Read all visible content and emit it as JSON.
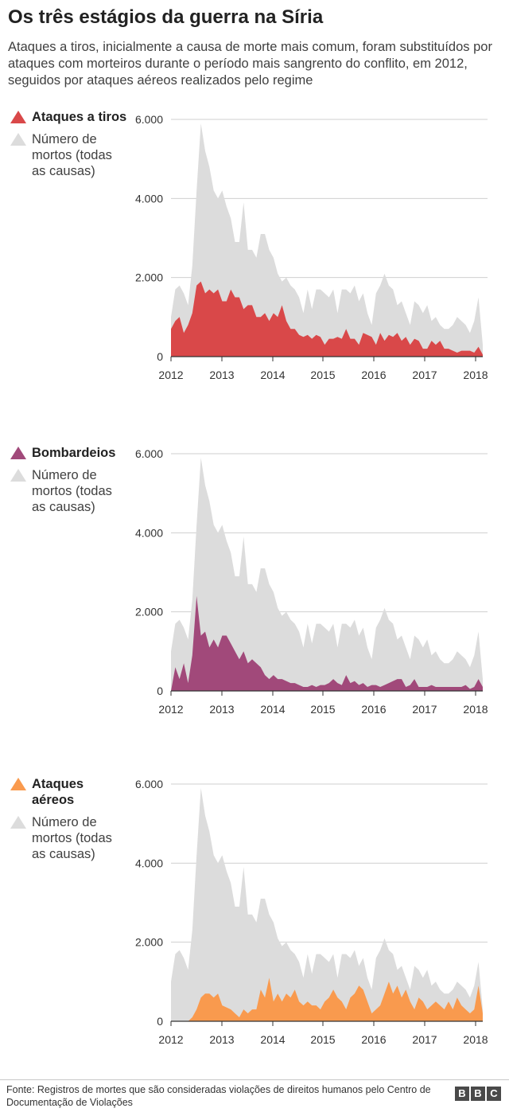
{
  "title": "Os três estágios da guerra na Síria",
  "subtitle": "Ataques a tiros, inicialmente a causa de morte mais comum, foram substituídos por ataques com morteiros durante o período mais sangrento do conflito, em 2012, seguidos por ataques aéreos realizados pelo regime",
  "source": "Fonte: Registros de mortes que são consideradas violações de direitos humanos pelo Centro de Documentação de Violações",
  "logo": [
    "B",
    "B",
    "C"
  ],
  "colors": {
    "total": "#dcdcdc",
    "shootings": "#d94849",
    "shelling": "#a1497a",
    "airstrikes": "#f99a4e"
  },
  "chart_data": [
    {
      "type": "area",
      "legend": [
        "Ataques a tiros",
        "Número de mortos (todas as causas)"
      ],
      "x_ticks": [
        "2012",
        "2013",
        "2014",
        "2015",
        "2016",
        "2017",
        "2018"
      ],
      "y_ticks": [
        "6.000",
        "4.000",
        "2.000",
        "0"
      ],
      "ylim": [
        0,
        6000
      ],
      "xlim": [
        "2012-01",
        "2018-03"
      ],
      "series": [
        {
          "name": "Número de mortos (todas as causas)",
          "color": "#dcdcdc",
          "values": [
            1000,
            1700,
            1800,
            1600,
            1300,
            2300,
            4200,
            5900,
            5200,
            4800,
            4200,
            4000,
            4200,
            3800,
            3500,
            2900,
            2900,
            3900,
            2700,
            2700,
            2500,
            3100,
            3100,
            2700,
            2500,
            2100,
            1900,
            2000,
            1800,
            1700,
            1500,
            1100,
            1700,
            1200,
            1700,
            1700,
            1600,
            1500,
            1700,
            1100,
            1700,
            1700,
            1600,
            1800,
            1400,
            1600,
            1100,
            800,
            1600,
            1800,
            2100,
            1800,
            1700,
            1300,
            1400,
            1100,
            800,
            1400,
            1300,
            1100,
            1300,
            900,
            1000,
            800,
            700,
            700,
            800,
            1000,
            900,
            800,
            600,
            900,
            1500,
            300
          ]
        },
        {
          "name": "Ataques a tiros",
          "color": "#d94849",
          "values": [
            700,
            900,
            1000,
            600,
            800,
            1100,
            1800,
            1900,
            1600,
            1700,
            1600,
            1700,
            1400,
            1400,
            1700,
            1500,
            1500,
            1200,
            1300,
            1300,
            1000,
            1000,
            1100,
            900,
            1100,
            1000,
            1300,
            900,
            700,
            700,
            550,
            500,
            550,
            450,
            550,
            500,
            300,
            450,
            450,
            500,
            450,
            700,
            450,
            450,
            300,
            600,
            550,
            500,
            300,
            600,
            400,
            550,
            500,
            600,
            400,
            500,
            300,
            450,
            400,
            200,
            200,
            400,
            300,
            400,
            200,
            200,
            150,
            100,
            150,
            150,
            150,
            100,
            250,
            50
          ]
        }
      ]
    },
    {
      "type": "area",
      "legend": [
        "Bombardeios",
        "Número de mortos (todas as causas)"
      ],
      "x_ticks": [
        "2012",
        "2013",
        "2014",
        "2015",
        "2016",
        "2017",
        "2018"
      ],
      "y_ticks": [
        "6.000",
        "4.000",
        "2.000",
        "0"
      ],
      "ylim": [
        0,
        6000
      ],
      "xlim": [
        "2012-01",
        "2018-03"
      ],
      "series": [
        {
          "name": "Número de mortos (todas as causas)",
          "color": "#dcdcdc",
          "values": [
            1000,
            1700,
            1800,
            1600,
            1300,
            2300,
            4200,
            5900,
            5200,
            4800,
            4200,
            4000,
            4200,
            3800,
            3500,
            2900,
            2900,
            3900,
            2700,
            2700,
            2500,
            3100,
            3100,
            2700,
            2500,
            2100,
            1900,
            2000,
            1800,
            1700,
            1500,
            1100,
            1700,
            1200,
            1700,
            1700,
            1600,
            1500,
            1700,
            1100,
            1700,
            1700,
            1600,
            1800,
            1400,
            1600,
            1100,
            800,
            1600,
            1800,
            2100,
            1800,
            1700,
            1300,
            1400,
            1100,
            800,
            1400,
            1300,
            1100,
            1300,
            900,
            1000,
            800,
            700,
            700,
            800,
            1000,
            900,
            800,
            600,
            900,
            1500,
            300
          ]
        },
        {
          "name": "Bombardeios",
          "color": "#a1497a",
          "values": [
            0,
            600,
            300,
            700,
            200,
            900,
            2400,
            1400,
            1500,
            1100,
            1300,
            1100,
            1400,
            1400,
            1200,
            1000,
            800,
            1000,
            700,
            800,
            700,
            600,
            400,
            300,
            400,
            300,
            300,
            250,
            200,
            200,
            150,
            100,
            100,
            150,
            100,
            150,
            150,
            200,
            300,
            200,
            150,
            400,
            200,
            250,
            150,
            200,
            100,
            150,
            150,
            100,
            150,
            200,
            250,
            300,
            300,
            100,
            150,
            300,
            100,
            100,
            100,
            150,
            100,
            100,
            100,
            100,
            100,
            100,
            100,
            150,
            50,
            100,
            300,
            100
          ]
        }
      ]
    },
    {
      "type": "area",
      "legend": [
        "Ataques aéreos",
        "Número de mortos (todas as causas)"
      ],
      "x_ticks": [
        "2012",
        "2013",
        "2014",
        "2015",
        "2016",
        "2017",
        "2018"
      ],
      "y_ticks": [
        "6.000",
        "4.000",
        "2.000",
        "0"
      ],
      "ylim": [
        0,
        6000
      ],
      "xlim": [
        "2012-01",
        "2018-03"
      ],
      "series": [
        {
          "name": "Número de mortos (todas as causas)",
          "color": "#dcdcdc",
          "values": [
            1000,
            1700,
            1800,
            1600,
            1300,
            2300,
            4200,
            5900,
            5200,
            4800,
            4200,
            4000,
            4200,
            3800,
            3500,
            2900,
            2900,
            3900,
            2700,
            2700,
            2500,
            3100,
            3100,
            2700,
            2500,
            2100,
            1900,
            2000,
            1800,
            1700,
            1500,
            1100,
            1700,
            1200,
            1700,
            1700,
            1600,
            1500,
            1700,
            1100,
            1700,
            1700,
            1600,
            1800,
            1400,
            1600,
            1100,
            800,
            1600,
            1800,
            2100,
            1800,
            1700,
            1300,
            1400,
            1100,
            800,
            1400,
            1300,
            1100,
            1300,
            900,
            1000,
            800,
            700,
            700,
            800,
            1000,
            900,
            800,
            600,
            900,
            1500,
            300
          ]
        },
        {
          "name": "Ataques aéreos",
          "color": "#f99a4e",
          "values": [
            0,
            0,
            0,
            0,
            0,
            100,
            300,
            600,
            700,
            700,
            600,
            700,
            400,
            350,
            300,
            200,
            100,
            300,
            200,
            300,
            300,
            800,
            600,
            1100,
            500,
            700,
            500,
            700,
            600,
            800,
            500,
            400,
            500,
            400,
            400,
            300,
            500,
            600,
            800,
            600,
            500,
            300,
            600,
            700,
            900,
            800,
            500,
            200,
            300,
            400,
            700,
            1000,
            700,
            900,
            600,
            800,
            500,
            300,
            600,
            500,
            300,
            400,
            500,
            400,
            300,
            500,
            300,
            600,
            400,
            300,
            200,
            300,
            900,
            200
          ]
        }
      ]
    }
  ]
}
